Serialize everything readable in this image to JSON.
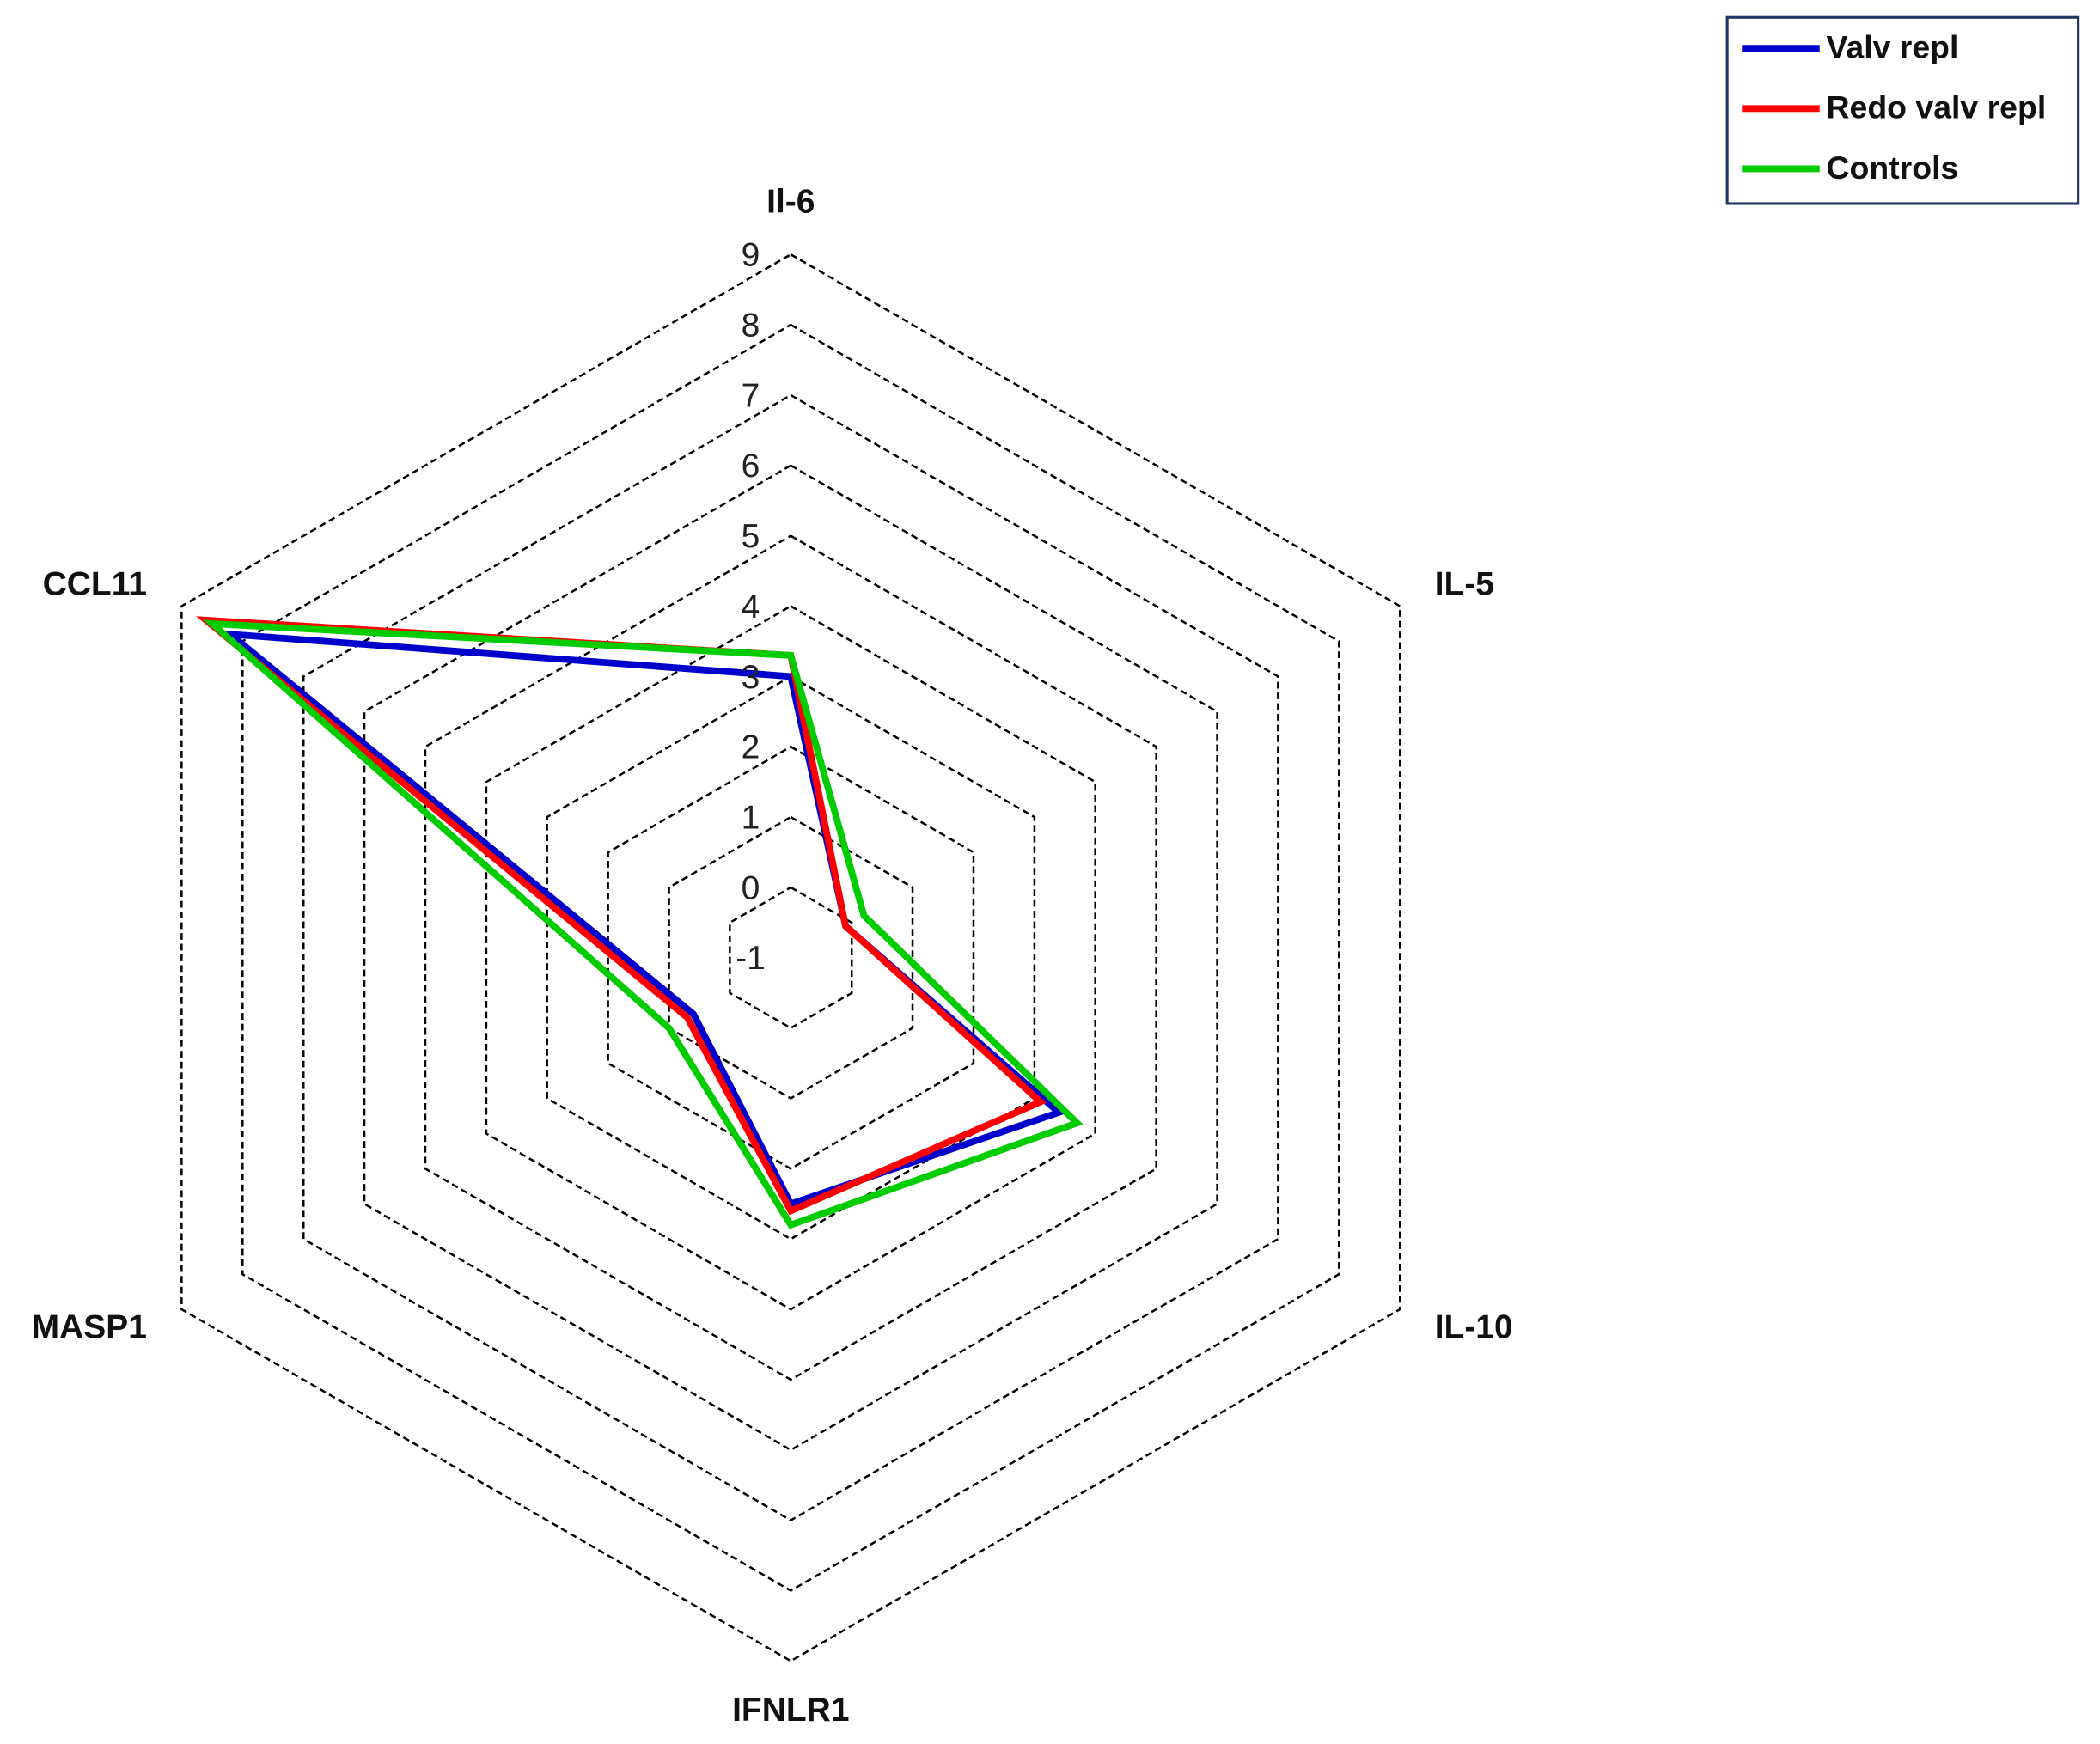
{
  "chart_data": {
    "type": "radar",
    "categories": [
      "Il-6",
      "IL-5",
      "IL-10",
      "IFNLR1",
      "MASP1",
      "CCL11"
    ],
    "series": [
      {
        "name": "Valv repl",
        "color": "#0000cc",
        "values": [
          3.0,
          -0.1,
          3.4,
          2.5,
          0.6,
          8.2
        ]
      },
      {
        "name": "Redo valv repl",
        "color": "#ff0000",
        "values": [
          3.3,
          -0.1,
          3.1,
          2.6,
          0.7,
          8.6
        ]
      },
      {
        "name": "Controls",
        "color": "#00cc00",
        "values": [
          3.3,
          0.2,
          3.7,
          2.8,
          1.0,
          8.5
        ]
      }
    ],
    "ylim": [
      -1,
      9
    ],
    "yticks": [
      -1,
      0,
      1,
      2,
      3,
      4,
      5,
      6,
      7,
      8,
      9
    ],
    "grid": true,
    "legend": "top-right"
  }
}
